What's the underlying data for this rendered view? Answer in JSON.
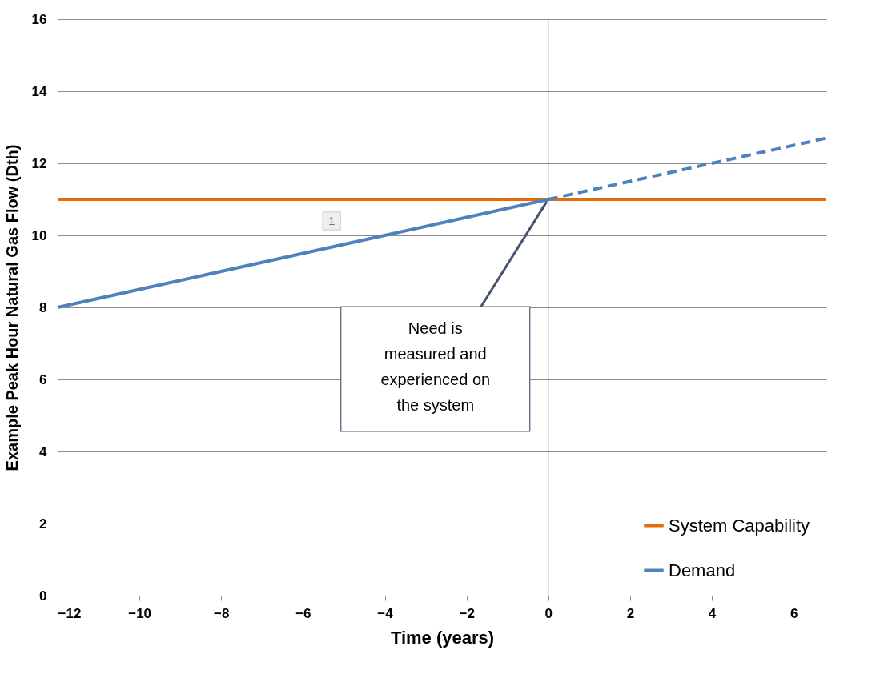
{
  "chart_data": {
    "type": "line",
    "xlabel": "Time (years)",
    "ylabel": "Example Peak Hour Natural Gas Flow (Dth)",
    "xlim": [
      -12,
      6.8
    ],
    "xticks": [
      -12,
      -10,
      -8,
      -6,
      -4,
      -2,
      0,
      2,
      4,
      6
    ],
    "ylim": [
      0,
      16
    ],
    "yticks": [
      0,
      2,
      4,
      6,
      8,
      10,
      12,
      14,
      16
    ],
    "grid": "y",
    "legend": "bottom right",
    "series": [
      {
        "name": "System Capability",
        "color": "#e36c09",
        "x": [
          -12,
          6.8
        ],
        "values": [
          11,
          11
        ],
        "line_style": "solid"
      },
      {
        "name": "Demand",
        "color": "#4f81bd",
        "x": [
          -12,
          -10,
          -8,
          -6,
          -4,
          -2,
          0
        ],
        "values": [
          8,
          8.5,
          9,
          9.5,
          10,
          10.5,
          11
        ],
        "line_style": "solid"
      },
      {
        "color": "#4f81bd",
        "x": [
          0,
          2,
          4,
          6.8
        ],
        "values": [
          11,
          11.5,
          12,
          12.7
        ],
        "line_style": "dashed"
      }
    ],
    "ref_lines": [
      {
        "axis": "x",
        "value": 0,
        "color": "#8c8c8c"
      }
    ],
    "annotations": [
      {
        "text": "1",
        "x": -5.3,
        "y": 10.4
      },
      {
        "text": "Need is measured and experienced on the system",
        "x": 0,
        "y": 11
      }
    ]
  }
}
